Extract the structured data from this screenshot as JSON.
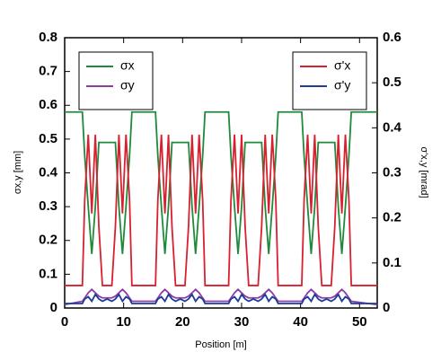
{
  "chart_data": {
    "type": "line",
    "x_label": "Position [m]",
    "y_label": "σx,y [mm]",
    "y2_label": "σ'x,y [mrad]",
    "x": [
      0,
      3,
      3.4,
      4,
      4.6,
      5.2,
      5.8,
      6.4,
      7.2,
      8,
      8.6,
      9.2,
      9.8,
      10.4,
      11,
      11.4,
      15.4,
      15.8,
      16.4,
      17,
      17.6,
      18.2,
      18.8,
      19.6,
      20.4,
      21,
      21.6,
      22.2,
      22.8,
      23.4,
      23.8,
      27.8,
      28.2,
      28.8,
      29.4,
      30,
      30.6,
      31.2,
      32,
      32.8,
      33.4,
      34,
      34.6,
      35.2,
      35.8,
      36.2,
      40.2,
      40.6,
      41.2,
      41.8,
      42.4,
      43,
      43.6,
      44.4,
      45.2,
      45.8,
      46.4,
      47,
      47.6,
      48.2,
      48.6,
      53
    ],
    "series": [
      {
        "name": "σx",
        "color": "#1f8a3c",
        "axis": "y",
        "legend": "upper left",
        "values": [
          0.58,
          0.58,
          0.45,
          0.3,
          0.16,
          0.3,
          0.49,
          0.49,
          0.49,
          0.49,
          0.49,
          0.3,
          0.16,
          0.3,
          0.45,
          0.58,
          0.58,
          0.45,
          0.3,
          0.16,
          0.3,
          0.49,
          0.49,
          0.49,
          0.49,
          0.49,
          0.3,
          0.16,
          0.3,
          0.45,
          0.58,
          0.58,
          0.45,
          0.3,
          0.16,
          0.3,
          0.49,
          0.49,
          0.49,
          0.49,
          0.49,
          0.3,
          0.16,
          0.3,
          0.45,
          0.58,
          0.58,
          0.45,
          0.3,
          0.16,
          0.3,
          0.49,
          0.49,
          0.49,
          0.49,
          0.49,
          0.3,
          0.16,
          0.3,
          0.45,
          0.58,
          0.58
        ]
      },
      {
        "name": "σy",
        "color": "#8e3ea3",
        "axis": "y",
        "legend": "upper left",
        "values": [
          0.01,
          0.02,
          0.03,
          0.045,
          0.055,
          0.045,
          0.035,
          0.03,
          0.03,
          0.03,
          0.035,
          0.045,
          0.055,
          0.045,
          0.03,
          0.02,
          0.02,
          0.03,
          0.045,
          0.055,
          0.045,
          0.035,
          0.03,
          0.03,
          0.03,
          0.035,
          0.045,
          0.055,
          0.045,
          0.03,
          0.02,
          0.02,
          0.03,
          0.045,
          0.055,
          0.045,
          0.035,
          0.03,
          0.03,
          0.03,
          0.035,
          0.045,
          0.055,
          0.045,
          0.03,
          0.02,
          0.02,
          0.03,
          0.045,
          0.055,
          0.045,
          0.035,
          0.03,
          0.03,
          0.03,
          0.035,
          0.045,
          0.055,
          0.045,
          0.03,
          0.02,
          0.01
        ]
      },
      {
        "name": "σ'x",
        "color": "#d9202e",
        "axis": "y2",
        "legend": "upper right",
        "values": [
          0.05,
          0.05,
          0.24,
          0.385,
          0.21,
          0.385,
          0.18,
          0.05,
          0.05,
          0.05,
          0.18,
          0.385,
          0.21,
          0.385,
          0.24,
          0.05,
          0.05,
          0.24,
          0.385,
          0.21,
          0.385,
          0.18,
          0.05,
          0.05,
          0.05,
          0.18,
          0.385,
          0.21,
          0.385,
          0.24,
          0.05,
          0.05,
          0.24,
          0.385,
          0.21,
          0.385,
          0.18,
          0.05,
          0.05,
          0.05,
          0.18,
          0.385,
          0.21,
          0.385,
          0.24,
          0.05,
          0.05,
          0.24,
          0.385,
          0.21,
          0.385,
          0.18,
          0.05,
          0.05,
          0.05,
          0.18,
          0.385,
          0.21,
          0.385,
          0.24,
          0.05,
          0.05
        ]
      },
      {
        "name": "σ'y",
        "color": "#1c3c9e",
        "axis": "y2",
        "legend": "upper right",
        "values": [
          0.01,
          0.01,
          0.02,
          0.025,
          0.015,
          0.03,
          0.02,
          0.015,
          0.02,
          0.015,
          0.02,
          0.03,
          0.015,
          0.025,
          0.02,
          0.01,
          0.01,
          0.02,
          0.025,
          0.015,
          0.03,
          0.02,
          0.015,
          0.02,
          0.015,
          0.02,
          0.03,
          0.015,
          0.025,
          0.02,
          0.01,
          0.01,
          0.02,
          0.025,
          0.015,
          0.03,
          0.02,
          0.015,
          0.02,
          0.015,
          0.02,
          0.03,
          0.015,
          0.025,
          0.02,
          0.01,
          0.01,
          0.02,
          0.025,
          0.015,
          0.03,
          0.02,
          0.015,
          0.02,
          0.015,
          0.02,
          0.03,
          0.015,
          0.025,
          0.02,
          0.01,
          0.01
        ]
      }
    ],
    "xlim": [
      0,
      53
    ],
    "xticks": [
      0,
      10,
      20,
      30,
      40,
      50
    ],
    "ylim": [
      0,
      0.8
    ],
    "yticks": [
      0,
      0.1,
      0.2,
      0.3,
      0.4,
      0.5,
      0.6,
      0.7,
      0.8
    ],
    "y2lim": [
      0,
      0.6
    ],
    "y2ticks": [
      0,
      0.1,
      0.2,
      0.3,
      0.4,
      0.5,
      0.6
    ]
  }
}
